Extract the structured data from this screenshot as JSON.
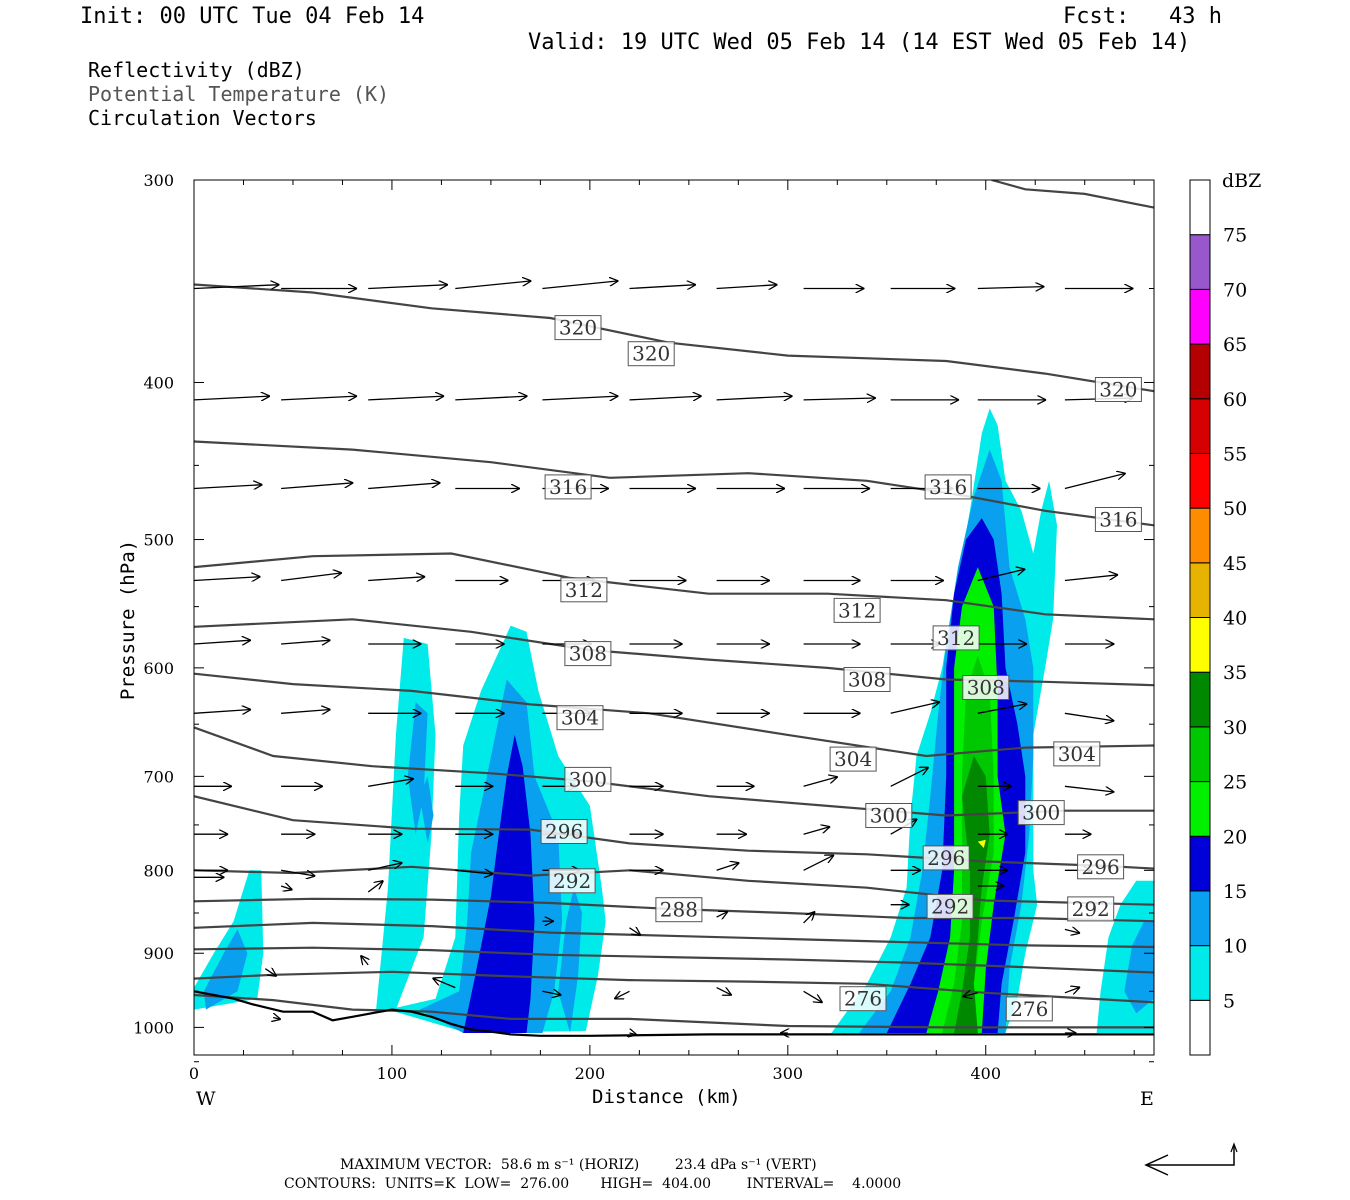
{
  "header": {
    "init": "Init: 00 UTC Tue 04 Feb 14",
    "fcst": "Fcst:   43 h",
    "valid": "Valid: 19 UTC Wed 05 Feb 14 (14 EST Wed 05 Feb 14)",
    "fields": [
      "Reflectivity (dBZ)",
      "Potential Temperature (K)",
      "Circulation Vectors"
    ]
  },
  "footer": {
    "max_vector": "MAXIMUM VECTOR:  58.6 m s⁻¹ (HORIZ)        23.4 dPa s⁻¹ (VERT)",
    "contours": "CONTOURS:  UNITS=K  LOW=  276.00       HIGH=  404.00        INTERVAL=    4.0000"
  },
  "chart_data": {
    "type": "cross-section",
    "xlabel": "Distance (km)",
    "ylabel": "Pressure (hPa)",
    "xlim": [
      0,
      485
    ],
    "ylim": [
      300,
      1040
    ],
    "y_log": true,
    "x_ticks": [
      "0",
      "100",
      "200",
      "300",
      "400"
    ],
    "y_ticks": [
      "300",
      "400",
      "500",
      "600",
      "700",
      "800",
      "900",
      "1000"
    ],
    "x_end_labels": {
      "left": "W",
      "right": "E"
    },
    "colorbar": {
      "title": "dBZ",
      "labels": [
        "5",
        "10",
        "15",
        "20",
        "25",
        "30",
        "35",
        "40",
        "45",
        "50",
        "55",
        "60",
        "65",
        "70",
        "75"
      ],
      "colors": [
        "#00eaea",
        "#0aa0f0",
        "#0000d8",
        "#00f000",
        "#00c800",
        "#008800",
        "#ffff00",
        "#e6b400",
        "#ff8c00",
        "#ff0000",
        "#d60000",
        "#b40000",
        "#ff00ff",
        "#9858cc",
        "#ffffff"
      ]
    },
    "contour_labels": [
      {
        "v": "320",
        "x": 194,
        "p": 370
      },
      {
        "v": "320",
        "x": 231,
        "p": 384
      },
      {
        "v": "320",
        "x": 467,
        "p": 404
      },
      {
        "v": "316",
        "x": 189,
        "p": 464
      },
      {
        "v": "316",
        "x": 381,
        "p": 464
      },
      {
        "v": "316",
        "x": 467,
        "p": 486
      },
      {
        "v": "312",
        "x": 197,
        "p": 537
      },
      {
        "v": "312",
        "x": 335,
        "p": 553
      },
      {
        "v": "312",
        "x": 385,
        "p": 575
      },
      {
        "v": "308",
        "x": 199,
        "p": 588
      },
      {
        "v": "308",
        "x": 340,
        "p": 610
      },
      {
        "v": "308",
        "x": 400,
        "p": 617
      },
      {
        "v": "304",
        "x": 195,
        "p": 644
      },
      {
        "v": "304",
        "x": 333,
        "p": 683
      },
      {
        "v": "304",
        "x": 446,
        "p": 678
      },
      {
        "v": "300",
        "x": 199,
        "p": 703
      },
      {
        "v": "300",
        "x": 351,
        "p": 740
      },
      {
        "v": "300",
        "x": 428,
        "p": 737
      },
      {
        "v": "296",
        "x": 187,
        "p": 757
      },
      {
        "v": "296",
        "x": 380,
        "p": 786
      },
      {
        "v": "296",
        "x": 458,
        "p": 796
      },
      {
        "v": "292",
        "x": 191,
        "p": 812
      },
      {
        "v": "292",
        "x": 382,
        "p": 842
      },
      {
        "v": "292",
        "x": 453,
        "p": 845
      },
      {
        "v": "288",
        "x": 245,
        "p": 846
      },
      {
        "v": "276",
        "x": 338,
        "p": 960
      },
      {
        "v": "276",
        "x": 422,
        "p": 974
      }
    ],
    "contour_levels": [
      "276",
      "280",
      "284",
      "288",
      "292",
      "296",
      "300",
      "304",
      "308",
      "312",
      "316",
      "320",
      "324"
    ]
  }
}
